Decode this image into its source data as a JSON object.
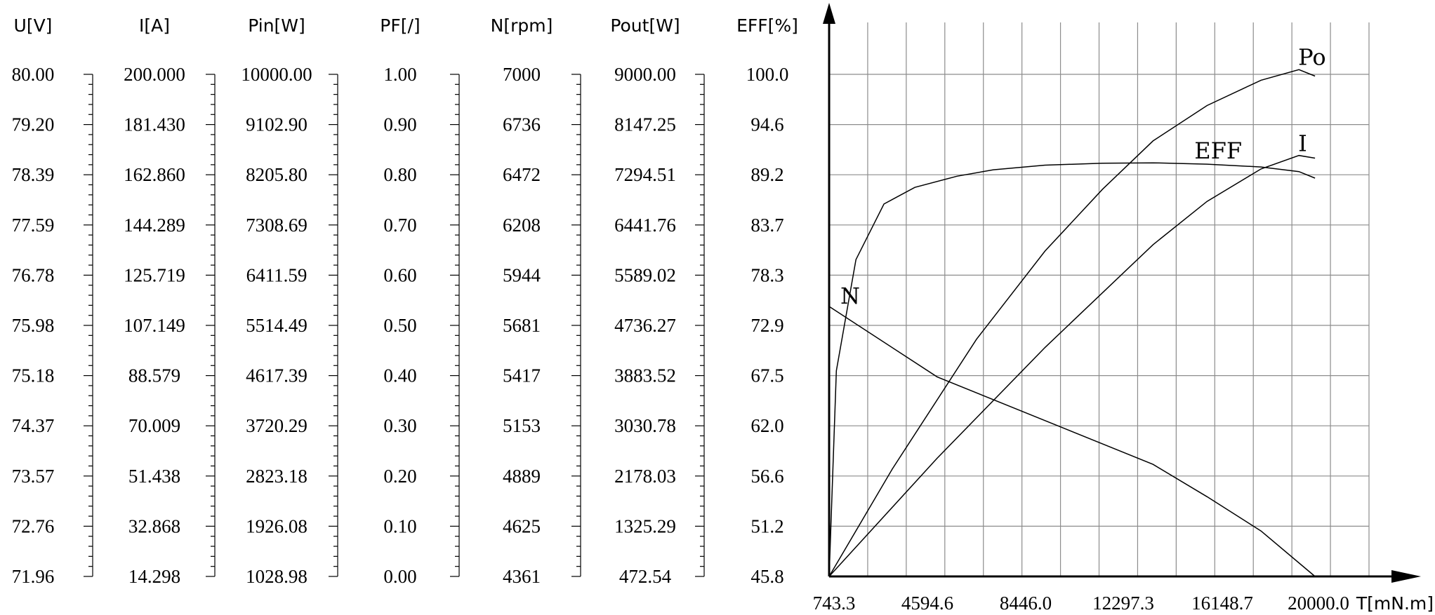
{
  "chart_data": {
    "type": "line",
    "columns": [
      {
        "header": "U[V]",
        "ticks": [
          "80.00",
          "79.20",
          "78.39",
          "77.59",
          "76.78",
          "75.98",
          "75.18",
          "74.37",
          "73.57",
          "72.76",
          "71.96"
        ]
      },
      {
        "header": "I[A]",
        "ticks": [
          "200.000",
          "181.430",
          "162.860",
          "144.289",
          "125.719",
          "107.149",
          "88.579",
          "70.009",
          "51.438",
          "32.868",
          "14.298"
        ]
      },
      {
        "header": "Pin[W]",
        "ticks": [
          "10000.00",
          "9102.90",
          "8205.80",
          "7308.69",
          "6411.59",
          "5514.49",
          "4617.39",
          "3720.29",
          "2823.18",
          "1926.08",
          "1028.98"
        ]
      },
      {
        "header": "PF[/]",
        "ticks": [
          "1.00",
          "0.90",
          "0.80",
          "0.70",
          "0.60",
          "0.50",
          "0.40",
          "0.30",
          "0.20",
          "0.10",
          "0.00"
        ]
      },
      {
        "header": "N[rpm]",
        "ticks": [
          "7000",
          "6736",
          "6472",
          "6208",
          "5944",
          "5681",
          "5417",
          "5153",
          "4889",
          "4625",
          "4361"
        ]
      },
      {
        "header": "Pout[W]",
        "ticks": [
          "9000.00",
          "8147.25",
          "7294.51",
          "6441.76",
          "5589.02",
          "4736.27",
          "3883.52",
          "3030.78",
          "2178.03",
          "1325.29",
          "472.54"
        ]
      },
      {
        "header": "EFF[%]",
        "ticks": [
          "100.0",
          "94.6",
          "89.2",
          "83.7",
          "78.3",
          "72.9",
          "67.5",
          "62.0",
          "56.6",
          "51.2",
          "45.8"
        ]
      }
    ],
    "x_axis": {
      "label": "T[mN.m]",
      "tick_labels": [
        "743.3",
        "4594.6",
        "8446.0",
        "12297.3",
        "16148.7",
        "20000.0"
      ],
      "range": [
        743.3,
        20000.0
      ]
    },
    "grid": true,
    "series": [
      {
        "name": "N",
        "scale": "N[rpm]",
        "points": [
          [
            743.3,
            5780
          ],
          [
            4594.6,
            5410
          ],
          [
            8446.0,
            5180
          ],
          [
            12297.3,
            4950
          ],
          [
            14222.9,
            4780
          ],
          [
            16148.7,
            4600
          ],
          [
            18074.4,
            4361
          ]
        ]
      },
      {
        "name": "EFF",
        "scale": "EFF[%]",
        "points": [
          [
            743.3,
            45.8
          ],
          [
            1000,
            68
          ],
          [
            1700,
            80
          ],
          [
            2700,
            86
          ],
          [
            3800,
            87.8
          ],
          [
            5300,
            89
          ],
          [
            6600,
            89.7
          ],
          [
            8446,
            90.2
          ],
          [
            10500,
            90.4
          ],
          [
            12297.3,
            90.45
          ],
          [
            14222.9,
            90.3
          ],
          [
            16148.7,
            90
          ],
          [
            17500,
            89.5
          ],
          [
            18074.4,
            88.8
          ]
        ]
      },
      {
        "name": "Po",
        "scale": "Pout[W]",
        "points": [
          [
            743.3,
            472.54
          ],
          [
            3000,
            2300
          ],
          [
            6000,
            4500
          ],
          [
            8446,
            6000
          ],
          [
            10500,
            7050
          ],
          [
            12297.3,
            7870
          ],
          [
            14222.9,
            8470
          ],
          [
            16148.7,
            8900
          ],
          [
            17500,
            9080
          ],
          [
            18074.4,
            8970
          ]
        ]
      },
      {
        "name": "I",
        "scale": "I[A]",
        "points": [
          [
            743.3,
            14.298
          ],
          [
            4594.6,
            58
          ],
          [
            8446.0,
            99
          ],
          [
            12297.3,
            137
          ],
          [
            14222.9,
            153
          ],
          [
            16148.7,
            165
          ],
          [
            17500,
            170
          ],
          [
            18074.4,
            169
          ]
        ]
      }
    ]
  }
}
